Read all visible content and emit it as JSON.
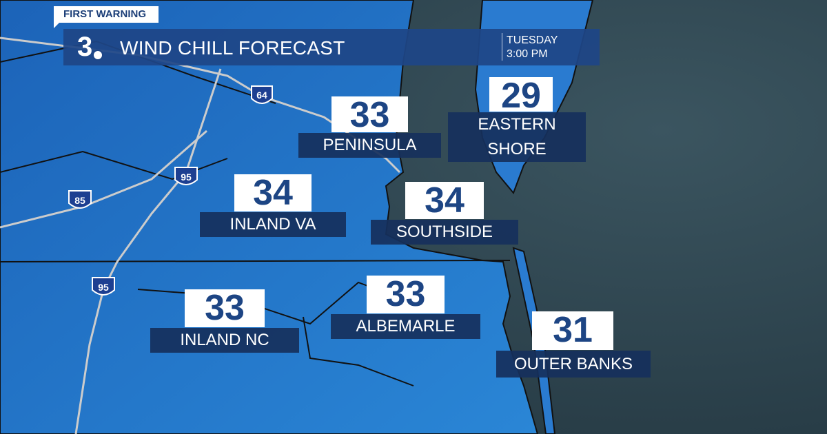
{
  "brand": {
    "tag": "FIRST WARNING",
    "station_logo_text": "3"
  },
  "header": {
    "title": "WIND CHILL FORECAST",
    "day": "TUESDAY",
    "time": "3:00 PM"
  },
  "colors": {
    "land": "#1f6ec4",
    "ocean": "#2f4650",
    "banner": "#1e4687",
    "label_bg": "#16305c",
    "number_text": "#1d4584"
  },
  "interstates": [
    "64",
    "95",
    "85",
    "95"
  ],
  "regions": [
    {
      "name": "PENINSULA",
      "wind_chill": "33"
    },
    {
      "name": "EASTERN SHORE",
      "wind_chill": "29"
    },
    {
      "name": "INLAND VA",
      "wind_chill": "34"
    },
    {
      "name": "SOUTHSIDE",
      "wind_chill": "34"
    },
    {
      "name": "INLAND NC",
      "wind_chill": "33"
    },
    {
      "name": "ALBEMARLE",
      "wind_chill": "33"
    },
    {
      "name": "OUTER BANKS",
      "wind_chill": "31"
    }
  ]
}
